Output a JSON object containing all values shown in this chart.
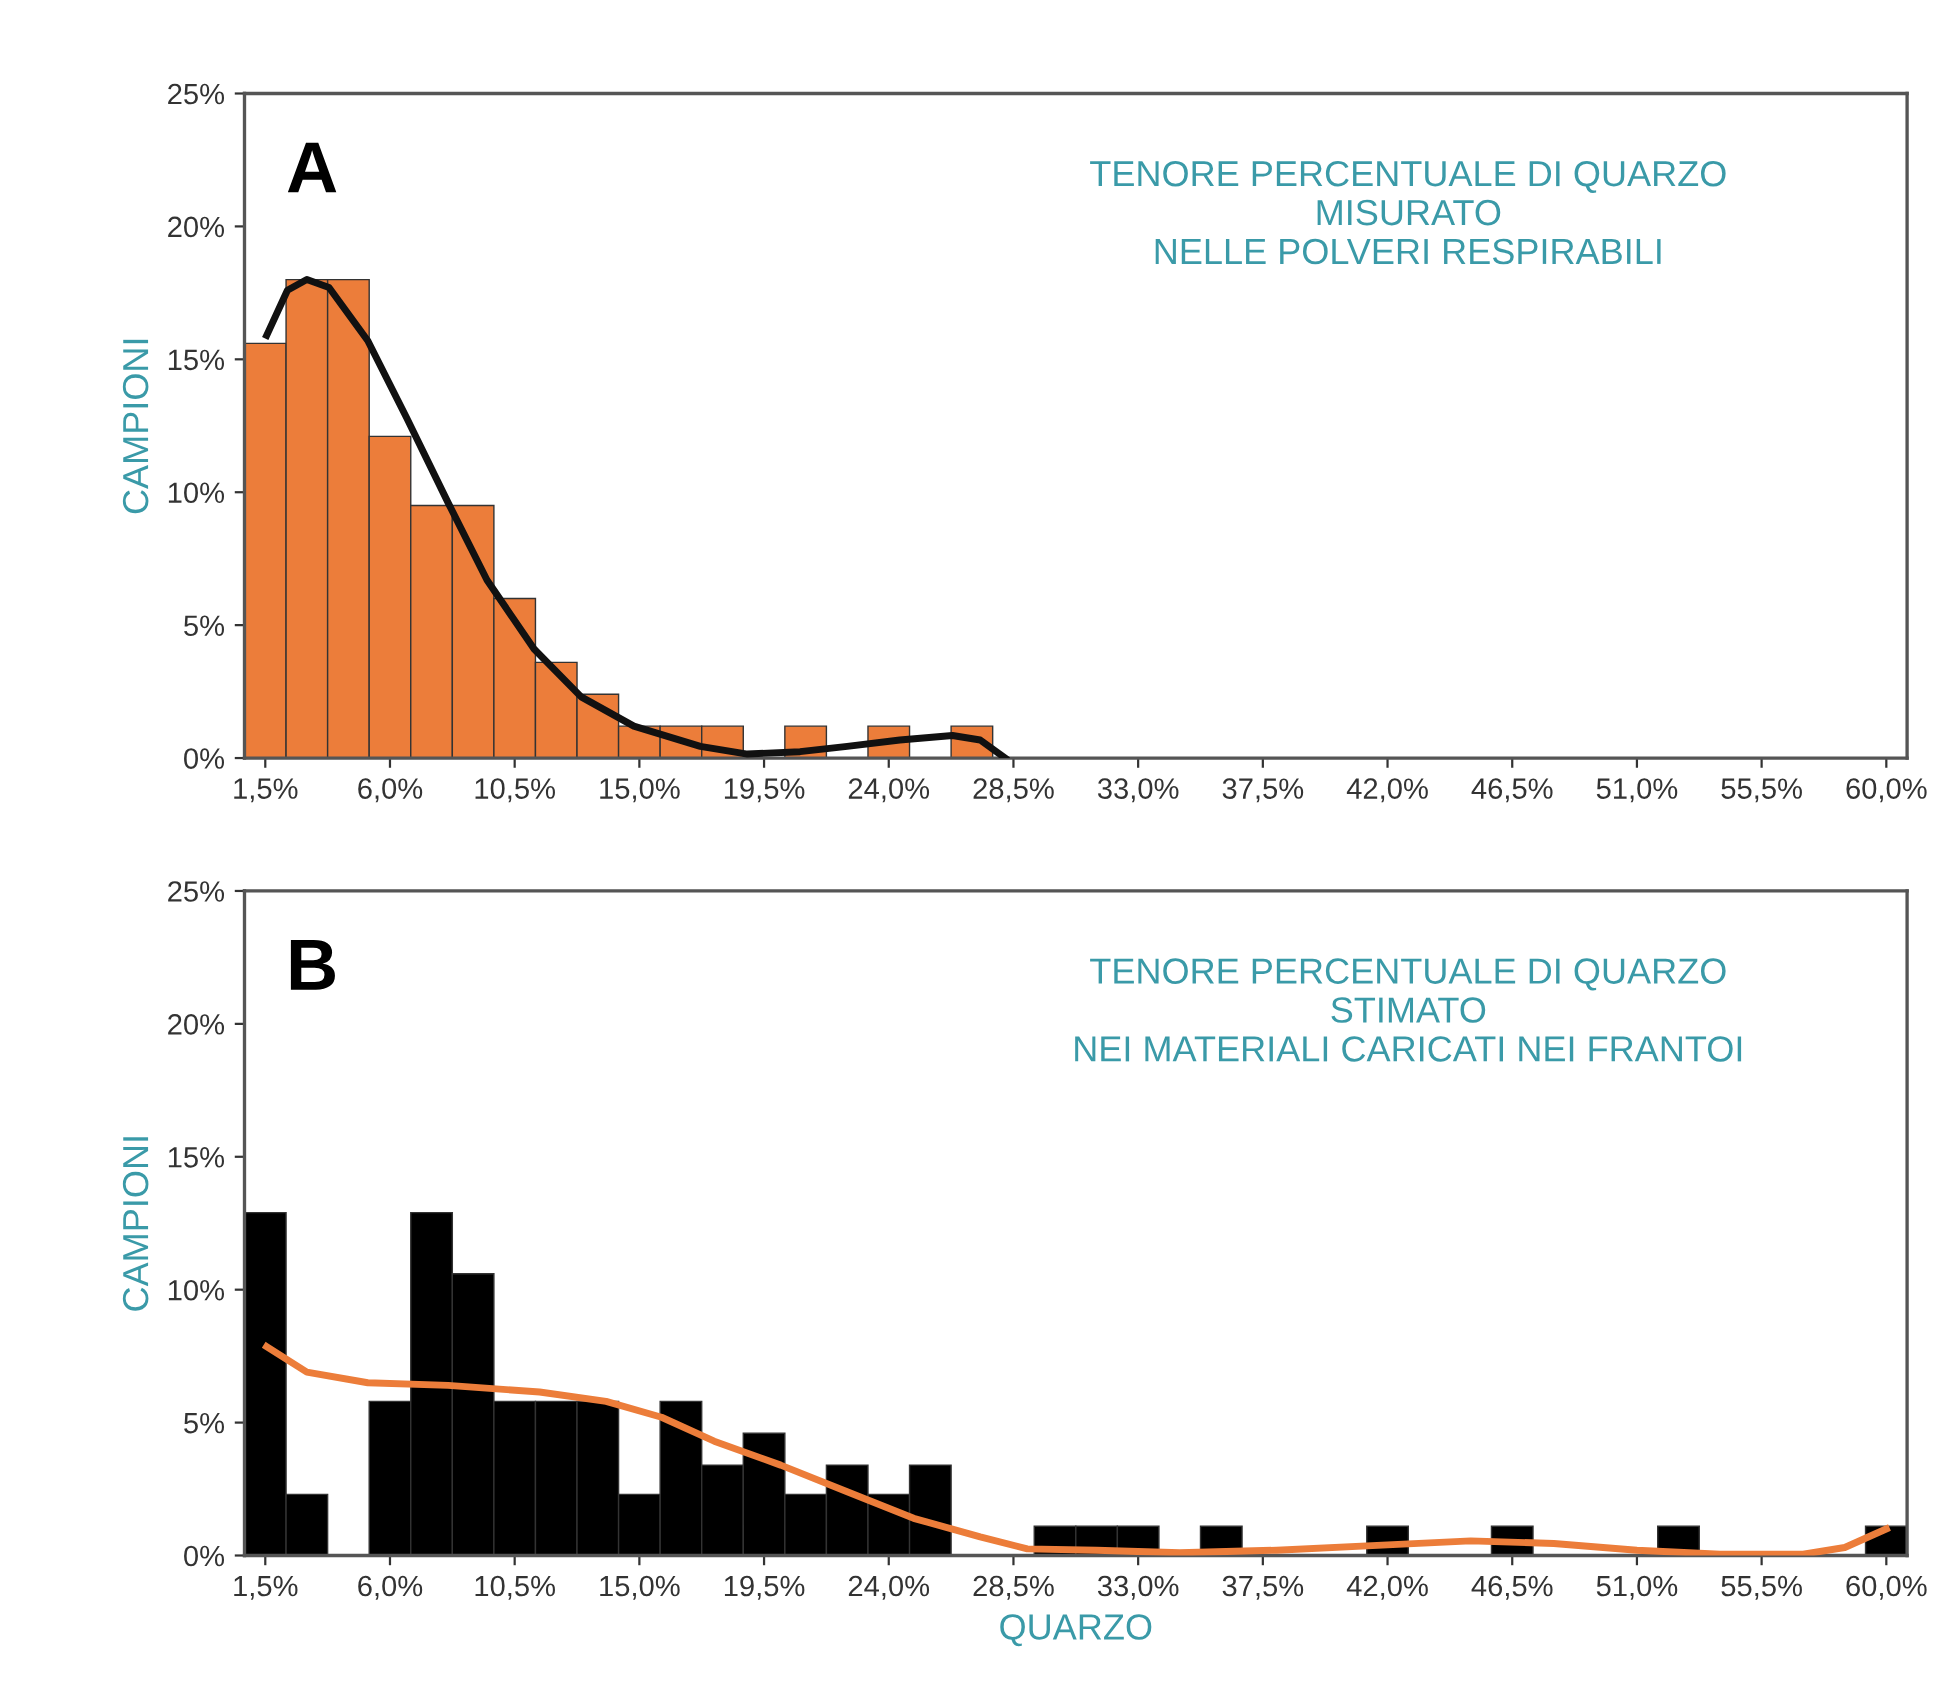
{
  "chart_data": [
    {
      "type": "histogram",
      "ylabel": "CAMPIONI",
      "annotations": [
        "A",
        "TENORE PERCENTUALE DI QUARZO\nMISURATO\nNELLE POLVERI RESPIRABILI"
      ],
      "bins": [
        0.75,
        2.25,
        3.75,
        5.25,
        6.75,
        8.25,
        9.75,
        11.25,
        12.75,
        14.25,
        15.75,
        17.25,
        18.75,
        20.25,
        21.75,
        23.25,
        24.75,
        26.25,
        27.75,
        29.25,
        30.75,
        32.25,
        33.75,
        35.25,
        36.75,
        38.25,
        39.75,
        41.25,
        42.75,
        44.25,
        45.75,
        47.25,
        48.75,
        50.25,
        51.75,
        53.25,
        54.75,
        56.25,
        57.75,
        59.25,
        60.75
      ],
      "values": [
        15.6,
        18.0,
        18.0,
        12.1,
        9.5,
        9.5,
        6.0,
        3.6,
        2.4,
        1.2,
        1.2,
        1.2,
        0,
        1.2,
        0,
        1.2,
        0,
        1.2,
        0,
        0,
        0,
        0,
        0,
        0,
        0,
        0,
        0,
        0,
        0,
        0,
        0,
        0,
        0,
        0,
        0,
        0,
        0,
        0,
        0,
        0
      ],
      "color": "#ec7d3a",
      "series": [
        {
          "type": "line",
          "color": "#111111",
          "x": [
            1.55,
            2.3,
            3.0,
            3.8,
            5.2,
            6.6,
            8.1,
            9.5,
            11.2,
            12.9,
            14.8,
            17.2,
            18.9,
            20.8,
            22.5,
            24.4,
            26.3,
            27.3,
            28.2
          ],
          "values": [
            15.9,
            17.6,
            18.0,
            17.7,
            15.7,
            12.8,
            9.6,
            6.7,
            4.1,
            2.3,
            1.2,
            0.44,
            0.15,
            0.24,
            0.44,
            0.68,
            0.85,
            0.68,
            0.0
          ]
        }
      ],
      "xlim": [
        0.75,
        60.75
      ],
      "xticks": [
        {
          "value": 1.5,
          "label": "1,5%"
        },
        {
          "value": 6.0,
          "label": "6,0%"
        },
        {
          "value": 10.5,
          "label": "10,5%"
        },
        {
          "value": 15.0,
          "label": "15,0%"
        },
        {
          "value": 19.5,
          "label": "19,5%"
        },
        {
          "value": 24.0,
          "label": "24,0%"
        },
        {
          "value": 28.5,
          "label": "28,5%"
        },
        {
          "value": 33.0,
          "label": "33,0%"
        },
        {
          "value": 37.5,
          "label": "37,5%"
        },
        {
          "value": 42.0,
          "label": "42,0%"
        },
        {
          "value": 46.5,
          "label": "46,5%"
        },
        {
          "value": 51.0,
          "label": "51,0%"
        },
        {
          "value": 55.5,
          "label": "55,5%"
        },
        {
          "value": 60.0,
          "label": "60,0%"
        }
      ],
      "ylim": [
        0,
        25
      ],
      "yticks": [
        {
          "value": 0,
          "label": "0%"
        },
        {
          "value": 5,
          "label": "5%"
        },
        {
          "value": 10,
          "label": "10%"
        },
        {
          "value": 15,
          "label": "15%"
        },
        {
          "value": 20,
          "label": "20%"
        },
        {
          "value": 25,
          "label": "25%"
        }
      ],
      "grid": false
    },
    {
      "type": "histogram",
      "ylabel": "CAMPIONI",
      "xlabel": "QUARZO",
      "annotations": [
        "B",
        "TENORE PERCENTUALE DI QUARZO\nSTIMATO\nNEI MATERIALI CARICATI NEI FRANTOI"
      ],
      "bins": [
        0.75,
        2.25,
        3.75,
        5.25,
        6.75,
        8.25,
        9.75,
        11.25,
        12.75,
        14.25,
        15.75,
        17.25,
        18.75,
        20.25,
        21.75,
        23.25,
        24.75,
        26.25,
        27.75,
        29.25,
        30.75,
        32.25,
        33.75,
        35.25,
        36.75,
        38.25,
        39.75,
        41.25,
        42.75,
        44.25,
        45.75,
        47.25,
        48.75,
        50.25,
        51.75,
        53.25,
        54.75,
        56.25,
        57.75,
        59.25,
        60.75
      ],
      "values": [
        12.9,
        2.3,
        0,
        5.8,
        12.9,
        10.6,
        5.8,
        5.8,
        5.8,
        2.3,
        5.8,
        3.4,
        4.6,
        2.3,
        3.4,
        2.3,
        3.4,
        0,
        0,
        1.1,
        1.1,
        1.1,
        0,
        1.1,
        0,
        0,
        0,
        1.1,
        0,
        0,
        1.1,
        0,
        0,
        0,
        1.1,
        0,
        0,
        0,
        0,
        1.1
      ],
      "color": "#000000",
      "series": [
        {
          "type": "line",
          "color": "#ec7d3a",
          "x": [
            1.55,
            3.0,
            5.2,
            8.1,
            11.4,
            13.8,
            15.8,
            17.7,
            20.1,
            22.5,
            24.9,
            27.3,
            29.0,
            31.5,
            34.5,
            38.0,
            42.0,
            45.0,
            48.0,
            51.0,
            54.0,
            57.0,
            58.5,
            60.0
          ],
          "values": [
            7.86,
            6.9,
            6.5,
            6.4,
            6.15,
            5.8,
            5.2,
            4.3,
            3.4,
            2.4,
            1.4,
            0.7,
            0.25,
            0.2,
            0.1,
            0.2,
            0.4,
            0.55,
            0.45,
            0.2,
            0.05,
            0.05,
            0.3,
            1.0
          ]
        }
      ],
      "xlim": [
        0.75,
        60.75
      ],
      "xticks": [
        {
          "value": 1.5,
          "label": "1,5%"
        },
        {
          "value": 6.0,
          "label": "6,0%"
        },
        {
          "value": 10.5,
          "label": "10,5%"
        },
        {
          "value": 15.0,
          "label": "15,0%"
        },
        {
          "value": 19.5,
          "label": "19,5%"
        },
        {
          "value": 24.0,
          "label": "24,0%"
        },
        {
          "value": 28.5,
          "label": "28,5%"
        },
        {
          "value": 33.0,
          "label": "33,0%"
        },
        {
          "value": 37.5,
          "label": "37,5%"
        },
        {
          "value": 42.0,
          "label": "42,0%"
        },
        {
          "value": 46.5,
          "label": "46,5%"
        },
        {
          "value": 51.0,
          "label": "51,0%"
        },
        {
          "value": 55.5,
          "label": "55,5%"
        },
        {
          "value": 60.0,
          "label": "60,0%"
        }
      ],
      "ylim": [
        0,
        25
      ],
      "yticks": [
        {
          "value": 0,
          "label": "0%"
        },
        {
          "value": 5,
          "label": "5%"
        },
        {
          "value": 10,
          "label": "10%"
        },
        {
          "value": 15,
          "label": "15%"
        },
        {
          "value": 20,
          "label": "20%"
        },
        {
          "value": 25,
          "label": "25%"
        }
      ],
      "grid": false
    }
  ]
}
